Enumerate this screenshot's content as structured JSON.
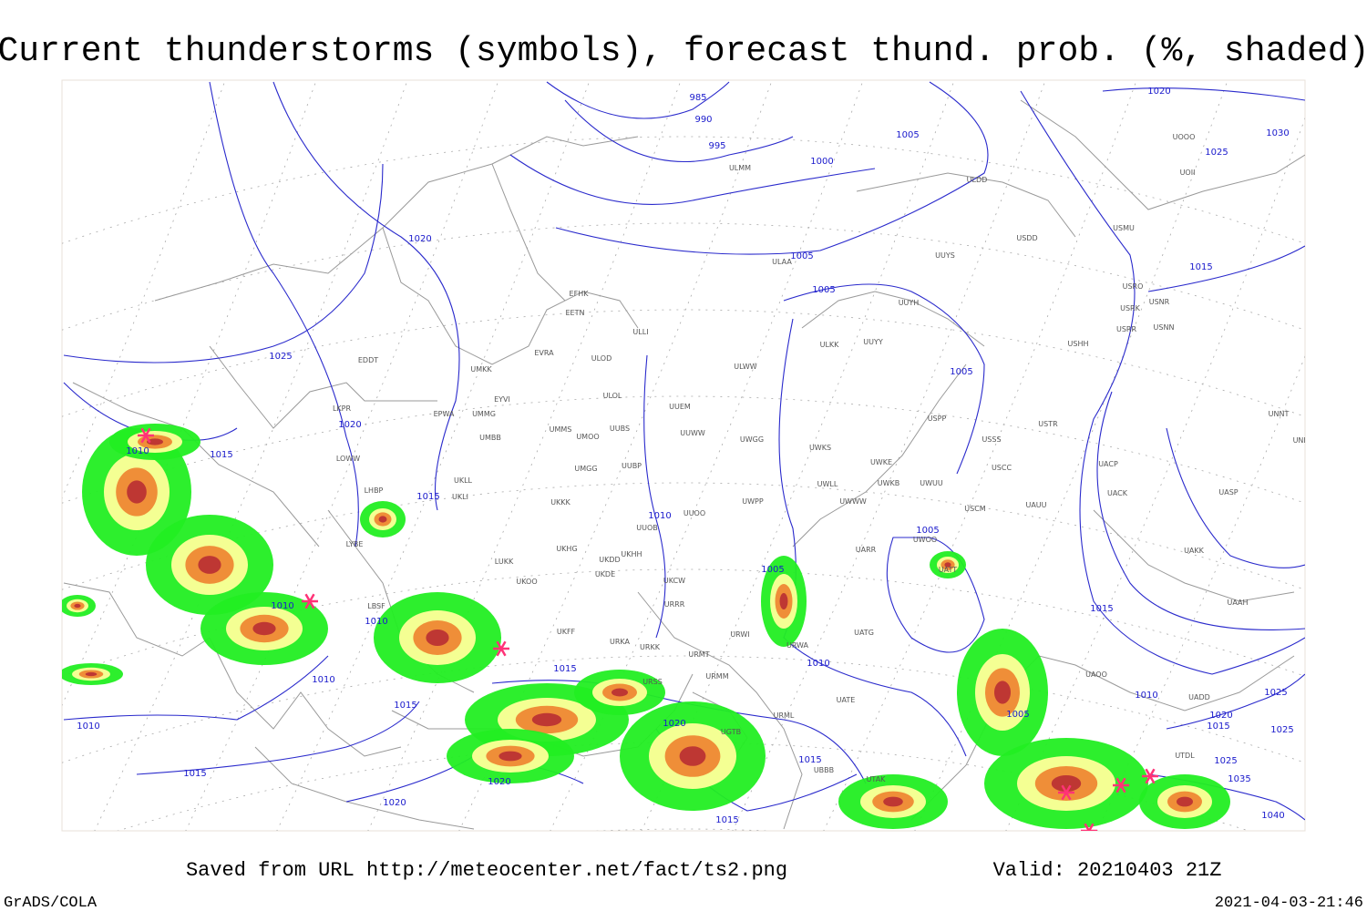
{
  "title": "Current thunderstorms (symbols), forecast thund. prob. (%, shaded)",
  "footer": {
    "saved": "Saved from URL http://meteocenter.net/fact/ts2.png",
    "valid": "Valid: 20210403 21Z",
    "software": "GrADS/COLA",
    "timestamp": "2021-04-03-21:46"
  },
  "map": {
    "isobar_labels": [
      985,
      990,
      995,
      1000,
      1005,
      1005,
      1005,
      1005,
      1020,
      1030,
      1025,
      1015,
      1025,
      1020,
      1020,
      1010,
      1015,
      1015,
      1010,
      1005,
      1005,
      1010,
      1010,
      1010,
      1015,
      1015,
      1010,
      1015,
      1020,
      1020,
      1015,
      1010,
      1010,
      1005,
      1015,
      1020,
      1025,
      1015,
      1025,
      1025,
      1035,
      1040,
      1015,
      1020
    ],
    "stations": [
      "EFHK",
      "EETN",
      "ULLI",
      "EVRA",
      "ULOD",
      "EDDT",
      "UMKK",
      "ULOL",
      "EYVI",
      "UUEM",
      "LKPR",
      "EPWA",
      "UMMG",
      "UMMS",
      "UMOO",
      "UUBS",
      "UUWW",
      "UMBB",
      "LOWW",
      "UUBP",
      "UMGG",
      "UKLL",
      "UKLI",
      "LHBP",
      "UKKK",
      "UUOO",
      "UUOB",
      "LYBE",
      "UKHG",
      "UKDD",
      "UKHH",
      "LUKK",
      "UKOO",
      "UKDE",
      "UKCW",
      "URRR",
      "LBSF",
      "UKFF",
      "URKA",
      "URKK",
      "URMT",
      "URMM",
      "URSS",
      "ULMM",
      "ULAA",
      "ULDD",
      "UUYS",
      "USDD",
      "UUYH",
      "ULKK",
      "UUYY",
      "ULWW",
      "UWGG",
      "UWKS",
      "UWKE",
      "UWLL",
      "UWKB",
      "UWUU",
      "UWPP",
      "UWWW",
      "USCM",
      "UATT",
      "UWOO",
      "USPP",
      "USSS",
      "USCC",
      "USTR",
      "UAUU",
      "UARR",
      "UACP",
      "UACK",
      "UASP",
      "UAKK",
      "UAAH",
      "UADD",
      "UAOO",
      "UTDL",
      "UATG",
      "URWI",
      "URWA",
      "UATE",
      "URML",
      "UBBB",
      "UTAK",
      "UGTB",
      "UNNT",
      "UNBB",
      "USHH",
      "USRR",
      "USNN",
      "USRK",
      "USNR",
      "USRO",
      "USMU",
      "UOOO",
      "UOII"
    ]
  }
}
